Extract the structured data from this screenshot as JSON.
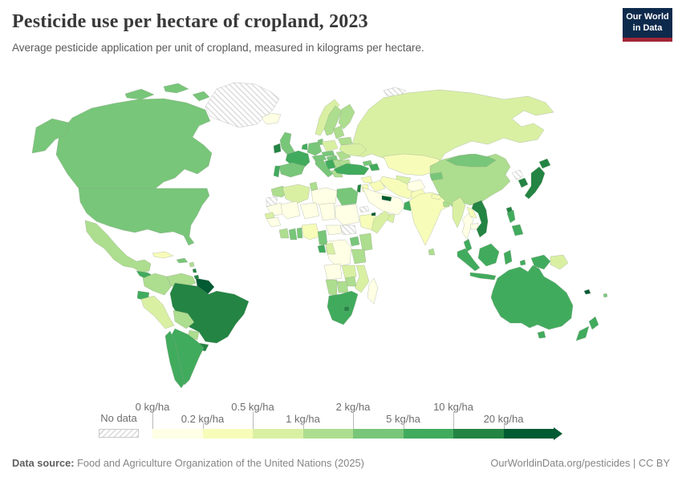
{
  "header": {
    "title": "Pesticide use per hectare of cropland, 2023",
    "subtitle": "Average pesticide application per unit of cropland, measured in kilograms per hectare.",
    "logo": {
      "line1": "Our World",
      "line2": "in Data"
    }
  },
  "legend": {
    "no_data_label": "No data",
    "unit_ticks": [
      "0 kg/ha",
      "0.2 kg/ha",
      "0.5 kg/ha",
      "1 kg/ha",
      "2 kg/ha",
      "5 kg/ha",
      "10 kg/ha",
      "20 kg/ha"
    ]
  },
  "footer": {
    "source_label": "Data source:",
    "source_text": "Food and Agriculture Organization of the United Nations (2025)",
    "credit": "OurWorldinData.org/pesticides | CC BY"
  },
  "chart_data": {
    "type": "choropleth",
    "title": "Pesticide use per hectare of cropland, 2023",
    "unit": "kg/ha",
    "legend_position": "bottom",
    "bin_order": [
      "0-0.2",
      "0.2-0.5",
      "0.5-1",
      "1-2",
      "2-5",
      "5-10",
      "10-20",
      "20+"
    ],
    "palette": {
      "0-0.2": "#ffffe5",
      "0.2-0.5": "#f7fcb9",
      "0.5-1": "#d9f0a3",
      "1-2": "#addd8e",
      "2-5": "#78c679",
      "5-10": "#41ab5d",
      "10-20": "#238443",
      "20+": "#005a32"
    },
    "no_data_color": "hatched",
    "regions": {
      "greenland": "no-data",
      "iceland": "0-0.2",
      "svalbard": "no-data",
      "canada": "2-5",
      "canada-arctic-1": "2-5",
      "canada-arctic-2": "2-5",
      "canada-arctic-3": "2-5",
      "alaska": "2-5",
      "usa": "2-5",
      "mexico": "1-2",
      "central-america-north": "5-10",
      "costa-rica-panama": "10-20",
      "cuba": "0.2-0.5",
      "hispaniola": "2-5",
      "antilles-1": "1-2",
      "antilles-2": "10-20",
      "trinidad": "10-20",
      "colombia": "1-2",
      "venezuela": "1-2",
      "guyanas": "20+",
      "ecuador": "5-10",
      "peru": "0.5-1",
      "brazil": "10-20",
      "bolivia": "1-2",
      "paraguay": "1-2",
      "uruguay": "10-20",
      "argentina": "5-10",
      "chile": "5-10",
      "norway": "0.5-1",
      "sweden": "1-2",
      "finland": "1-2",
      "uk": "2-5",
      "ireland": "10-20",
      "denmark": "2-5",
      "france": "5-10",
      "spain": "2-5",
      "portugal": "5-10",
      "germany": "2-5",
      "benelux": "5-10",
      "italy": "2-5",
      "alpine": "2-5",
      "poland": "0.5-1",
      "czech-slovakia": "2-5",
      "hungary": "2-5",
      "croatia": "5-10",
      "serbia": "1-2",
      "greece": "1-2",
      "romania": "1-2",
      "bulgaria": "1-2",
      "baltics": "1-2",
      "belarus": "1-2",
      "ukraine": "0.5-1",
      "russia": "0.5-1",
      "kazakhstan": "0.2-0.5",
      "uzbekistan": "0.5-1",
      "turkmenistan": "no-data",
      "kyrgyz-tajik": "2-5",
      "georgia": "2-5",
      "azerbaijan": "5-10",
      "turkey": "5-10",
      "syria": "0.2-0.5",
      "iraq": "0.2-0.5",
      "iran": "0.2-0.5",
      "israel": "10-20",
      "jordan": "0.2-0.5",
      "saudi-arabia": "0-0.2",
      "yemen": "0.5-1",
      "oman": "5-10",
      "qatar-uae": "20+",
      "afghanistan": "0-0.2",
      "pakistan": "0.2-0.5",
      "india": "0.2-0.5",
      "nepal": "0.2-0.5",
      "bangladesh": "1-2",
      "sri-lanka": "1-2",
      "china": "1-2",
      "mongolia": "2-5",
      "north-korea": "no-data",
      "south-korea": "10-20",
      "japan": "10-20",
      "hokkaido": "10-20",
      "taiwan": "10-20",
      "myanmar": "0.5-1",
      "thailand": "0-0.2",
      "laos": "0.2-0.5",
      "cambodia": "0-0.2",
      "vietnam": "10-20",
      "malaysia": "5-10",
      "sumatra": "5-10",
      "java": "5-10",
      "borneo": "5-10",
      "sulawesi": "5-10",
      "lesser-sunda": "5-10",
      "maluku": "5-10",
      "philippines-luzon": "5-10",
      "philippines-south": "5-10",
      "papua": "5-10",
      "png": "0.5-1",
      "w-sahara": "no-data",
      "morocco": "1-2",
      "algeria": "0.5-1",
      "tunisia": "1-2",
      "libya": "0-0.2",
      "egypt": "2-5",
      "mauritania": "0-0.2",
      "mali": "0-0.2",
      "niger": "0-0.2",
      "chad": "0-0.2",
      "sudan": "0-0.2",
      "eritrea": "no-data",
      "ethiopia": "0.2-0.5",
      "djibouti": "20+",
      "somalia": "0.5-1",
      "senegal": "0.5-1",
      "guinea-region": "0-0.2",
      "ivory-coast": "1-2",
      "ghana": "2-5",
      "togo-benin": "2-5",
      "nigeria": "0.2-0.5",
      "cameroon": "2-5",
      "car": "0-0.2",
      "south-sudan": "no-data",
      "uganda": "2-5",
      "kenya": "1-2",
      "drc": "0-0.2",
      "gabon": "5-10",
      "congo": "0.5-1",
      "tanzania": "1-2",
      "angola": "0-0.2",
      "zambia": "0.5-1",
      "mozambique": "0.5-1",
      "zimbabwe": "1-2",
      "botswana": "1-2",
      "namibia": "1-2",
      "south-africa": "5-10",
      "lesotho": "10-20",
      "madagascar": "0-0.2",
      "australia": "5-10",
      "tasmania": "5-10",
      "nz-north": "5-10",
      "nz-south": "5-10",
      "new-caledonia": "20+",
      "fiji": "2-5"
    }
  }
}
